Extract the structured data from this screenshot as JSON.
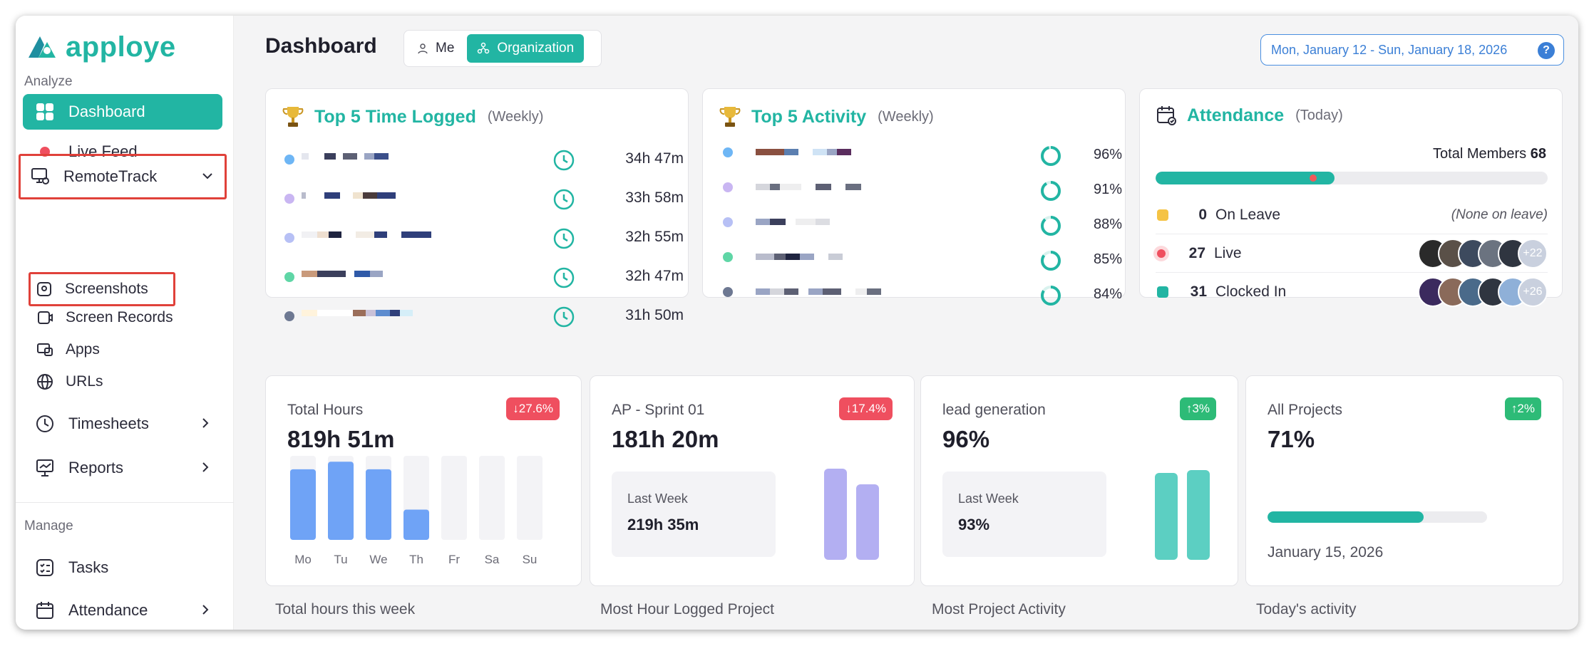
{
  "brand": {
    "name": "apploye",
    "color": "#22b5a3"
  },
  "sidebar": {
    "analyze_label": "Analyze",
    "manage_label": "Manage",
    "items": [
      {
        "label": "Dashboard",
        "icon": "dashboard-icon",
        "active": true
      },
      {
        "label": "Live Feed",
        "icon": "live-dot-icon"
      },
      {
        "label": "RemoteTrack",
        "icon": "remote-track-icon",
        "expanded": true
      },
      {
        "label": "Timesheets",
        "icon": "clock-icon"
      },
      {
        "label": "Reports",
        "icon": "reports-icon"
      },
      {
        "label": "Tasks",
        "icon": "tasks-icon"
      },
      {
        "label": "Attendance",
        "icon": "calendar-icon"
      }
    ],
    "sub_items": [
      {
        "label": "Screenshots",
        "icon": "screenshot-icon"
      },
      {
        "label": "Screen Records",
        "icon": "screen-record-icon"
      },
      {
        "label": "Apps",
        "icon": "apps-icon"
      },
      {
        "label": "URLs",
        "icon": "globe-icon"
      }
    ]
  },
  "header": {
    "title": "Dashboard",
    "toggle": {
      "me": "Me",
      "organization": "Organization",
      "selected": "organization"
    },
    "date_range": "Mon, January 12 - Sun, January 18, 2026",
    "help": "?"
  },
  "top_time": {
    "title": "Top 5 Time Logged",
    "period": "(Weekly)",
    "rows": [
      {
        "dot": "#6eb6f5",
        "value": "34h 47m"
      },
      {
        "dot": "#c9b6f2",
        "value": "33h 58m"
      },
      {
        "dot": "#b7c0f5",
        "value": "32h 55m"
      },
      {
        "dot": "#5fd6a6",
        "value": "32h 47m"
      },
      {
        "dot": "#6d7892",
        "value": "31h 50m"
      }
    ]
  },
  "top_activity": {
    "title": "Top 5 Activity",
    "period": "(Weekly)",
    "rows": [
      {
        "dot": "#6eb6f5",
        "value": "96%",
        "percent": 96
      },
      {
        "dot": "#c9b6f2",
        "value": "91%",
        "percent": 91
      },
      {
        "dot": "#b7c0f5",
        "value": "88%",
        "percent": 88
      },
      {
        "dot": "#5fd6a6",
        "value": "85%",
        "percent": 85
      },
      {
        "dot": "#6d7892",
        "value": "84%",
        "percent": 84
      }
    ]
  },
  "attendance": {
    "title": "Attendance",
    "period": "(Today)",
    "total_label": "Total Members",
    "total_value": "68",
    "clocked_fraction": 0.456,
    "rows": [
      {
        "color": "#f5c344",
        "count": "0",
        "label": "On Leave",
        "note": "(None on leave)"
      },
      {
        "color": "#ef5a5a",
        "count": "27",
        "label": "Live",
        "more": "+22"
      },
      {
        "color": "#22b5a3",
        "count": "31",
        "label": "Clocked In",
        "more": "+26"
      }
    ]
  },
  "stats": [
    {
      "title": "Total Hours",
      "value": "819h 51m",
      "badge": "↓27.6%",
      "trend": "down",
      "caption": "Total hours this week",
      "chart_data": {
        "type": "bar",
        "categories": [
          "Mo",
          "Tu",
          "We",
          "Th",
          "Fr",
          "Sa",
          "Su"
        ],
        "values": [
          0.84,
          0.93,
          0.84,
          0.36,
          0,
          0,
          0
        ]
      }
    },
    {
      "title": "AP - Sprint 01",
      "value": "181h 20m",
      "badge": "↓17.4%",
      "trend": "down",
      "week_label": "Last Week",
      "week_value": "219h 35m",
      "caption": "Most Hour Logged Project"
    },
    {
      "title": "lead generation",
      "value": "96%",
      "badge": "↑3%",
      "trend": "up",
      "week_label": "Last Week",
      "week_value": "93%",
      "caption": "Most Project Activity"
    },
    {
      "title": "All Projects",
      "value": "71%",
      "badge": "↑2%",
      "trend": "up",
      "progress": 0.71,
      "date": "January 15, 2026",
      "caption": "Today's activity"
    }
  ]
}
